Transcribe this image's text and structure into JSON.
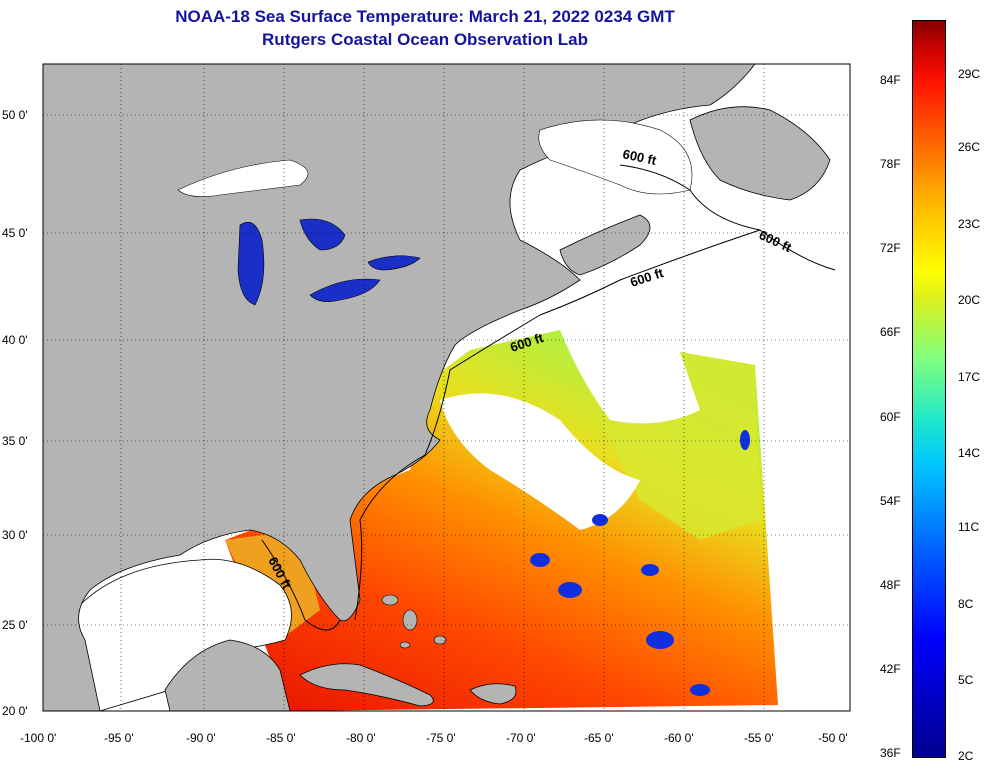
{
  "title": {
    "line1": "NOAA-18 Sea Surface Temperature:  March 21, 2022 0234 GMT",
    "line2": "Rutgers Coastal Ocean Observation Lab"
  },
  "map": {
    "lat_labels": [
      "50 0'",
      "45 0'",
      "40 0'",
      "35 0'",
      "30 0'",
      "25 0'",
      "20 0'"
    ],
    "lon_labels": [
      "-100 0'",
      "-95 0'",
      "-90 0'",
      "-85 0'",
      "-80 0'",
      "-75 0'",
      "-70 0'",
      "-65 0'",
      "-60 0'",
      "-55 0'",
      "-50 0'"
    ],
    "contour_labels": [
      "600 ft",
      "600 ft",
      "600 ft",
      "600 ft",
      "600 ft"
    ],
    "colors": {
      "land": "#b4b4b4",
      "lakes": "#1a2fc8",
      "cloud": "#ffffff",
      "warm": "#f04010",
      "cool": "#d8f020"
    }
  },
  "colorbar": {
    "fahrenheit": [
      "84F",
      "78F",
      "72F",
      "66F",
      "60F",
      "54F",
      "48F",
      "42F",
      "36F"
    ],
    "celsius": [
      "29C",
      "26C",
      "23C",
      "20C",
      "17C",
      "14C",
      "11C",
      "8C",
      "5C",
      "2C"
    ]
  }
}
